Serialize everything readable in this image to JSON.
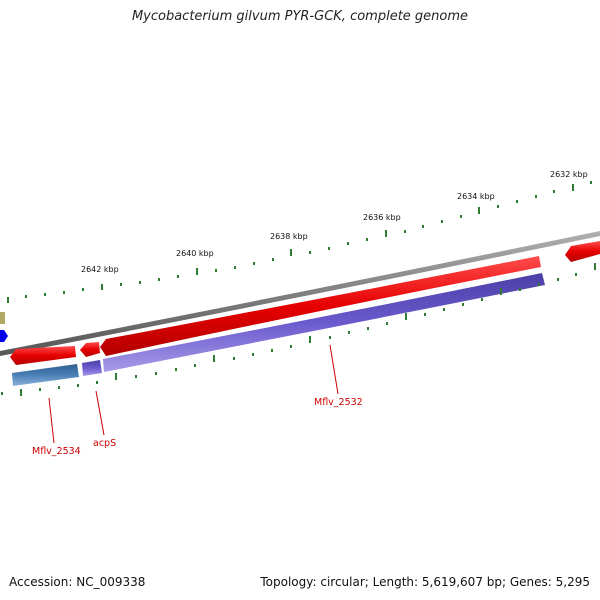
{
  "title": "Mycobacterium gilvum PYR-GCK, complete genome",
  "footer": {
    "accession": "Accession: NC_009338",
    "topology": "Topology: circular; Length: 5,619,607 bp; Genes: 5,295"
  },
  "scale_labels": [
    "2642 kbp",
    "2640 kbp",
    "2638 kbp",
    "2636 kbp",
    "2634 kbp",
    "2632 kbp"
  ],
  "gene_labels": [
    "Mflv_2534",
    "acpS",
    "Mflv_2532"
  ],
  "colors": {
    "forward_gene": "#e60000",
    "reverse_orf_blue": "#4a7fb5",
    "reverse_orf_purple": "#6a5acd",
    "backbone": "#808080",
    "ticks": "#2e7d32",
    "small_feature_blue": "#0000ee",
    "small_feature_olive": "#b0aa66"
  }
}
